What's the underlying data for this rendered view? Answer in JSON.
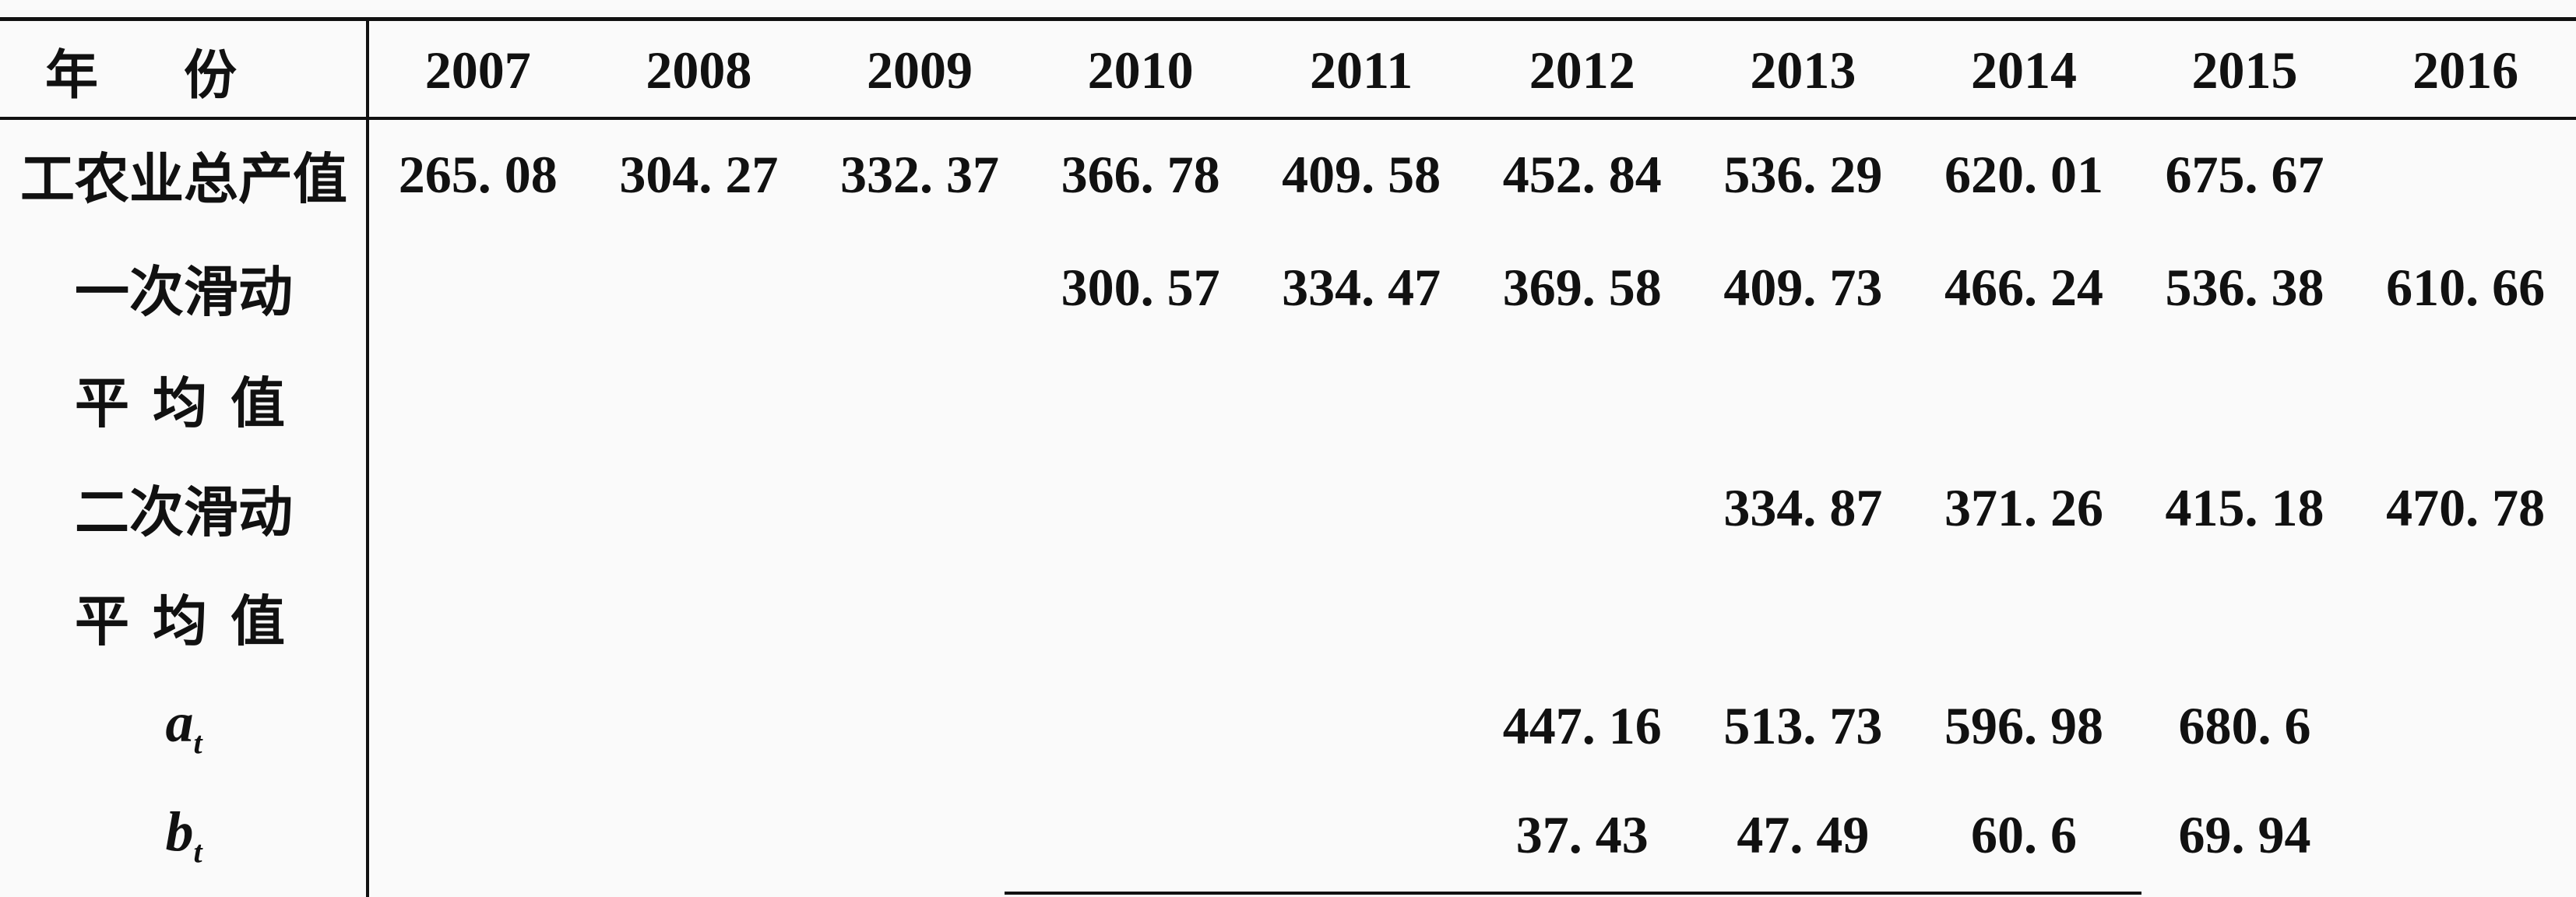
{
  "table": {
    "header_label": "年份",
    "years": [
      "2007",
      "2008",
      "2009",
      "2010",
      "2011",
      "2012",
      "2013",
      "2014",
      "2015",
      "2016"
    ],
    "rows": [
      {
        "label": "工农业总产值",
        "values": [
          "265. 08",
          "304. 27",
          "332. 37",
          "366. 78",
          "409. 58",
          "452. 84",
          "536. 29",
          "620. 01",
          "675. 67",
          ""
        ]
      },
      {
        "label": "一次滑动",
        "values": [
          "",
          "",
          "",
          "300. 57",
          "334. 47",
          "369. 58",
          "409. 73",
          "466. 24",
          "536. 38",
          "610. 66"
        ]
      },
      {
        "label": "平均值",
        "values": [
          "",
          "",
          "",
          "",
          "",
          "",
          "",
          "",
          "",
          ""
        ]
      },
      {
        "label": "二次滑动",
        "values": [
          "",
          "",
          "",
          "",
          "",
          "",
          "334. 87",
          "371. 26",
          "415. 18",
          "470. 78"
        ]
      },
      {
        "label": "平均值",
        "values": [
          "",
          "",
          "",
          "",
          "",
          "",
          "",
          "",
          "",
          ""
        ]
      },
      {
        "label_var": "a",
        "label_sub": "t",
        "values": [
          "",
          "",
          "",
          "",
          "",
          "447. 16",
          "513. 73",
          "596. 98",
          "680. 6",
          ""
        ]
      },
      {
        "label_var": "b",
        "label_sub": "t",
        "values": [
          "",
          "",
          "",
          "",
          "",
          "37. 43",
          "47. 49",
          "60. 6",
          "69. 94",
          ""
        ]
      }
    ]
  }
}
